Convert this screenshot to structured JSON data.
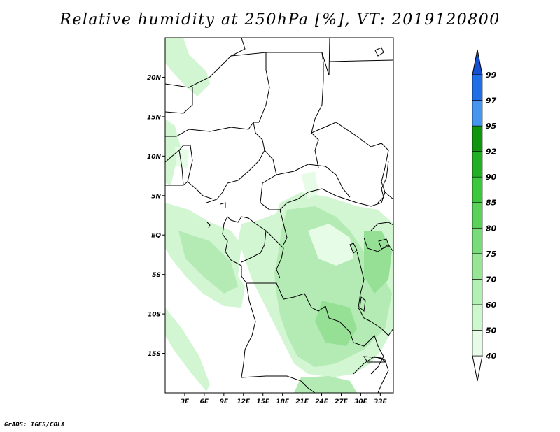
{
  "title": "Relative humidity at 250hPa [%], VT: 2019120800",
  "credit": "GrADS: IGES/COLA",
  "map": {
    "lat_labels": [
      "20N",
      "15N",
      "10N",
      "5N",
      "EQ",
      "5S",
      "10S",
      "15S"
    ],
    "lat_values": [
      20,
      15,
      10,
      5,
      0,
      -5,
      -10,
      -15
    ],
    "lon_labels": [
      "3E",
      "6E",
      "9E",
      "12E",
      "15E",
      "18E",
      "21E",
      "24E",
      "27E",
      "30E",
      "33E"
    ],
    "lon_values": [
      3,
      6,
      9,
      12,
      15,
      18,
      21,
      24,
      27,
      30,
      33
    ],
    "lon_range": [
      0,
      35
    ],
    "lat_range": [
      -20,
      25
    ]
  },
  "colorbar": {
    "labels": [
      "40",
      "50",
      "60",
      "70",
      "75",
      "80",
      "85",
      "90",
      "92",
      "95",
      "97",
      "99"
    ],
    "colors": [
      "#ffffff",
      "#e6fce6",
      "#cdf7cd",
      "#b3f0b3",
      "#96e696",
      "#78dc78",
      "#5ad25a",
      "#3cc83c",
      "#23af23",
      "#0f960f",
      "#4696f0",
      "#1e6ee6",
      "#1450d2"
    ]
  },
  "colors": {
    "land_border": "#000000",
    "humidity_light": "#d2f5d2",
    "humidity_mid": "#b4ebb4",
    "humidity_dark": "#96e096"
  }
}
